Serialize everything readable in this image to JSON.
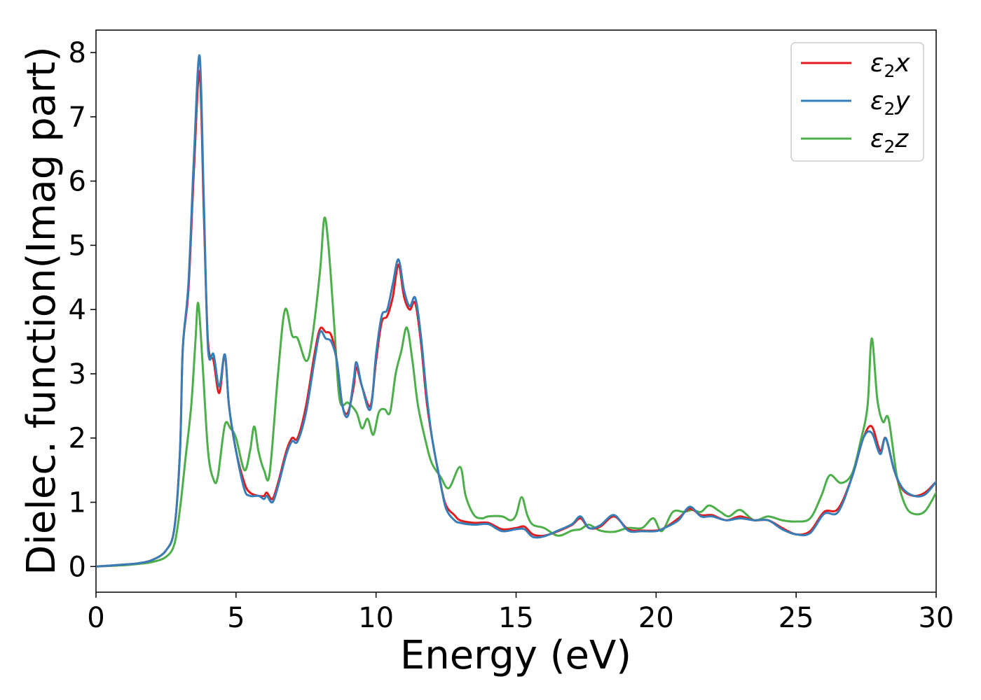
{
  "chart_data": {
    "type": "line",
    "title": "",
    "xlabel": "Energy (eV)",
    "ylabel": "Dielec. function(Imag part)",
    "xlim": [
      0,
      30
    ],
    "ylim": [
      -0.4,
      8.35
    ],
    "xticks": [
      0,
      5,
      10,
      15,
      20,
      25,
      30
    ],
    "yticks": [
      0,
      1,
      2,
      3,
      4,
      5,
      6,
      7,
      8
    ],
    "grid": false,
    "legend_position": "top-right",
    "series": [
      {
        "name": "ε₂x",
        "legend_base": "ε",
        "legend_sub": "2",
        "legend_suffix": "x",
        "color": "#e41a1c",
        "points": [
          [
            0,
            0
          ],
          [
            1,
            0.03
          ],
          [
            1.5,
            0.05
          ],
          [
            2,
            0.1
          ],
          [
            2.5,
            0.25
          ],
          [
            2.8,
            0.6
          ],
          [
            3.0,
            1.8
          ],
          [
            3.1,
            3.4
          ],
          [
            3.3,
            4.3
          ],
          [
            3.5,
            6.2
          ],
          [
            3.7,
            7.7
          ],
          [
            3.85,
            5.5
          ],
          [
            4.0,
            3.5
          ],
          [
            4.2,
            3.2
          ],
          [
            4.4,
            2.7
          ],
          [
            4.6,
            3.3
          ],
          [
            4.75,
            2.5
          ],
          [
            5.0,
            1.8
          ],
          [
            5.3,
            1.3
          ],
          [
            5.5,
            1.15
          ],
          [
            5.8,
            1.1
          ],
          [
            6.0,
            1.1
          ],
          [
            6.1,
            1.15
          ],
          [
            6.3,
            1.05
          ],
          [
            6.5,
            1.3
          ],
          [
            6.8,
            1.8
          ],
          [
            7.0,
            2.0
          ],
          [
            7.2,
            2.0
          ],
          [
            7.5,
            2.5
          ],
          [
            7.8,
            3.3
          ],
          [
            8.0,
            3.7
          ],
          [
            8.2,
            3.65
          ],
          [
            8.4,
            3.6
          ],
          [
            8.6,
            3.2
          ],
          [
            8.8,
            2.5
          ],
          [
            9.0,
            2.4
          ],
          [
            9.2,
            2.8
          ],
          [
            9.3,
            3.1
          ],
          [
            9.5,
            2.8
          ],
          [
            9.8,
            2.5
          ],
          [
            10.0,
            3.2
          ],
          [
            10.2,
            3.8
          ],
          [
            10.4,
            3.9
          ],
          [
            10.6,
            4.2
          ],
          [
            10.8,
            4.7
          ],
          [
            11.0,
            4.2
          ],
          [
            11.2,
            4.0
          ],
          [
            11.4,
            4.1
          ],
          [
            11.6,
            3.5
          ],
          [
            11.8,
            2.6
          ],
          [
            12.0,
            2.0
          ],
          [
            12.3,
            1.3
          ],
          [
            12.5,
            0.95
          ],
          [
            12.8,
            0.8
          ],
          [
            13.0,
            0.72
          ],
          [
            13.5,
            0.68
          ],
          [
            14.0,
            0.68
          ],
          [
            14.5,
            0.58
          ],
          [
            15.0,
            0.6
          ],
          [
            15.3,
            0.62
          ],
          [
            15.6,
            0.5
          ],
          [
            16.0,
            0.48
          ],
          [
            16.5,
            0.55
          ],
          [
            17.0,
            0.65
          ],
          [
            17.3,
            0.75
          ],
          [
            17.6,
            0.6
          ],
          [
            18.0,
            0.62
          ],
          [
            18.5,
            0.78
          ],
          [
            19.0,
            0.58
          ],
          [
            19.5,
            0.56
          ],
          [
            20.0,
            0.56
          ],
          [
            20.3,
            0.6
          ],
          [
            20.8,
            0.75
          ],
          [
            21.2,
            0.9
          ],
          [
            21.6,
            0.8
          ],
          [
            22.0,
            0.8
          ],
          [
            22.5,
            0.72
          ],
          [
            23.0,
            0.78
          ],
          [
            23.5,
            0.72
          ],
          [
            24.0,
            0.72
          ],
          [
            24.5,
            0.6
          ],
          [
            25.0,
            0.5
          ],
          [
            25.5,
            0.55
          ],
          [
            26.0,
            0.85
          ],
          [
            26.5,
            0.9
          ],
          [
            27.0,
            1.4
          ],
          [
            27.4,
            2.0
          ],
          [
            27.7,
            2.18
          ],
          [
            28.0,
            1.8
          ],
          [
            28.2,
            2.0
          ],
          [
            28.5,
            1.5
          ],
          [
            28.8,
            1.2
          ],
          [
            29.2,
            1.1
          ],
          [
            29.6,
            1.15
          ],
          [
            30.0,
            1.32
          ]
        ]
      },
      {
        "name": "ε₂y",
        "legend_base": "ε",
        "legend_sub": "2",
        "legend_suffix": "y",
        "color": "#377eb8",
        "points": [
          [
            0,
            0
          ],
          [
            1,
            0.03
          ],
          [
            1.5,
            0.05
          ],
          [
            2,
            0.1
          ],
          [
            2.5,
            0.25
          ],
          [
            2.8,
            0.6
          ],
          [
            3.0,
            1.8
          ],
          [
            3.1,
            3.4
          ],
          [
            3.3,
            4.4
          ],
          [
            3.5,
            6.4
          ],
          [
            3.7,
            7.95
          ],
          [
            3.85,
            5.7
          ],
          [
            4.0,
            3.4
          ],
          [
            4.2,
            3.3
          ],
          [
            4.4,
            2.8
          ],
          [
            4.6,
            3.3
          ],
          [
            4.75,
            2.5
          ],
          [
            5.0,
            1.8
          ],
          [
            5.3,
            1.2
          ],
          [
            5.5,
            1.1
          ],
          [
            5.8,
            1.1
          ],
          [
            6.0,
            1.05
          ],
          [
            6.1,
            1.1
          ],
          [
            6.3,
            1.0
          ],
          [
            6.5,
            1.25
          ],
          [
            6.8,
            1.75
          ],
          [
            7.0,
            1.95
          ],
          [
            7.2,
            1.95
          ],
          [
            7.5,
            2.4
          ],
          [
            7.8,
            3.2
          ],
          [
            8.0,
            3.65
          ],
          [
            8.2,
            3.55
          ],
          [
            8.4,
            3.5
          ],
          [
            8.6,
            3.2
          ],
          [
            8.8,
            2.5
          ],
          [
            9.0,
            2.35
          ],
          [
            9.2,
            2.9
          ],
          [
            9.3,
            3.18
          ],
          [
            9.5,
            2.8
          ],
          [
            9.8,
            2.45
          ],
          [
            10.0,
            3.3
          ],
          [
            10.2,
            3.9
          ],
          [
            10.4,
            4.0
          ],
          [
            10.6,
            4.4
          ],
          [
            10.8,
            4.78
          ],
          [
            11.0,
            4.3
          ],
          [
            11.2,
            4.05
          ],
          [
            11.4,
            4.18
          ],
          [
            11.6,
            3.6
          ],
          [
            11.8,
            2.7
          ],
          [
            12.0,
            2.0
          ],
          [
            12.3,
            1.3
          ],
          [
            12.5,
            0.9
          ],
          [
            12.8,
            0.72
          ],
          [
            13.0,
            0.68
          ],
          [
            13.5,
            0.65
          ],
          [
            14.0,
            0.66
          ],
          [
            14.5,
            0.55
          ],
          [
            15.0,
            0.58
          ],
          [
            15.3,
            0.58
          ],
          [
            15.6,
            0.46
          ],
          [
            16.0,
            0.47
          ],
          [
            16.5,
            0.56
          ],
          [
            17.0,
            0.66
          ],
          [
            17.3,
            0.78
          ],
          [
            17.6,
            0.6
          ],
          [
            18.0,
            0.64
          ],
          [
            18.5,
            0.8
          ],
          [
            19.0,
            0.56
          ],
          [
            19.5,
            0.55
          ],
          [
            20.0,
            0.55
          ],
          [
            20.3,
            0.6
          ],
          [
            20.8,
            0.72
          ],
          [
            21.2,
            0.93
          ],
          [
            21.6,
            0.78
          ],
          [
            22.0,
            0.78
          ],
          [
            22.5,
            0.72
          ],
          [
            23.0,
            0.75
          ],
          [
            23.5,
            0.72
          ],
          [
            24.0,
            0.72
          ],
          [
            24.5,
            0.58
          ],
          [
            25.0,
            0.5
          ],
          [
            25.5,
            0.52
          ],
          [
            26.0,
            0.82
          ],
          [
            26.5,
            0.85
          ],
          [
            27.0,
            1.4
          ],
          [
            27.4,
            2.0
          ],
          [
            27.7,
            2.08
          ],
          [
            28.0,
            1.75
          ],
          [
            28.2,
            2.0
          ],
          [
            28.5,
            1.5
          ],
          [
            28.8,
            1.22
          ],
          [
            29.2,
            1.1
          ],
          [
            29.6,
            1.12
          ],
          [
            30.0,
            1.32
          ]
        ]
      },
      {
        "name": "ε₂z",
        "legend_base": "ε",
        "legend_sub": "2",
        "legend_suffix": "z",
        "color": "#4daf4a",
        "points": [
          [
            0,
            0
          ],
          [
            1,
            0.02
          ],
          [
            1.5,
            0.04
          ],
          [
            2,
            0.07
          ],
          [
            2.5,
            0.15
          ],
          [
            2.8,
            0.35
          ],
          [
            3.0,
            0.9
          ],
          [
            3.2,
            1.7
          ],
          [
            3.4,
            2.5
          ],
          [
            3.55,
            3.5
          ],
          [
            3.65,
            4.1
          ],
          [
            3.8,
            3.2
          ],
          [
            4.0,
            1.8
          ],
          [
            4.2,
            1.35
          ],
          [
            4.35,
            1.4
          ],
          [
            4.6,
            2.2
          ],
          [
            4.8,
            2.15
          ],
          [
            5.0,
            2.0
          ],
          [
            5.3,
            1.5
          ],
          [
            5.5,
            1.8
          ],
          [
            5.65,
            2.18
          ],
          [
            5.8,
            1.8
          ],
          [
            6.0,
            1.5
          ],
          [
            6.2,
            1.45
          ],
          [
            6.5,
            3.0
          ],
          [
            6.75,
            4.0
          ],
          [
            7.0,
            3.6
          ],
          [
            7.2,
            3.55
          ],
          [
            7.5,
            3.2
          ],
          [
            7.7,
            3.5
          ],
          [
            8.0,
            4.6
          ],
          [
            8.15,
            5.42
          ],
          [
            8.3,
            5.0
          ],
          [
            8.5,
            3.8
          ],
          [
            8.7,
            2.6
          ],
          [
            9.0,
            2.55
          ],
          [
            9.3,
            2.4
          ],
          [
            9.5,
            2.15
          ],
          [
            9.7,
            2.3
          ],
          [
            9.9,
            2.05
          ],
          [
            10.1,
            2.4
          ],
          [
            10.3,
            2.45
          ],
          [
            10.5,
            2.4
          ],
          [
            10.7,
            3.0
          ],
          [
            10.9,
            3.35
          ],
          [
            11.1,
            3.72
          ],
          [
            11.3,
            3.2
          ],
          [
            11.5,
            2.5
          ],
          [
            11.8,
            1.9
          ],
          [
            12.0,
            1.6
          ],
          [
            12.3,
            1.4
          ],
          [
            12.6,
            1.22
          ],
          [
            13.0,
            1.55
          ],
          [
            13.2,
            1.1
          ],
          [
            13.5,
            0.8
          ],
          [
            13.8,
            0.75
          ],
          [
            14.0,
            0.78
          ],
          [
            14.5,
            0.78
          ],
          [
            14.8,
            0.72
          ],
          [
            15.0,
            0.8
          ],
          [
            15.2,
            1.08
          ],
          [
            15.4,
            0.8
          ],
          [
            15.6,
            0.65
          ],
          [
            16.0,
            0.6
          ],
          [
            16.5,
            0.48
          ],
          [
            17.0,
            0.56
          ],
          [
            17.3,
            0.58
          ],
          [
            17.6,
            0.65
          ],
          [
            18.0,
            0.56
          ],
          [
            18.5,
            0.54
          ],
          [
            19.0,
            0.6
          ],
          [
            19.5,
            0.6
          ],
          [
            19.9,
            0.75
          ],
          [
            20.2,
            0.55
          ],
          [
            20.6,
            0.85
          ],
          [
            21.0,
            0.85
          ],
          [
            21.3,
            0.88
          ],
          [
            21.6,
            0.85
          ],
          [
            21.9,
            0.95
          ],
          [
            22.3,
            0.85
          ],
          [
            22.6,
            0.78
          ],
          [
            23.0,
            0.88
          ],
          [
            23.5,
            0.72
          ],
          [
            24.0,
            0.78
          ],
          [
            24.5,
            0.72
          ],
          [
            25.0,
            0.7
          ],
          [
            25.5,
            0.75
          ],
          [
            25.9,
            1.1
          ],
          [
            26.2,
            1.42
          ],
          [
            26.6,
            1.3
          ],
          [
            27.0,
            1.45
          ],
          [
            27.3,
            1.95
          ],
          [
            27.55,
            2.5
          ],
          [
            27.7,
            3.55
          ],
          [
            27.9,
            2.6
          ],
          [
            28.1,
            2.25
          ],
          [
            28.3,
            2.3
          ],
          [
            28.6,
            1.4
          ],
          [
            28.9,
            0.95
          ],
          [
            29.2,
            0.82
          ],
          [
            29.6,
            0.86
          ],
          [
            30.0,
            1.15
          ]
        ]
      }
    ]
  }
}
